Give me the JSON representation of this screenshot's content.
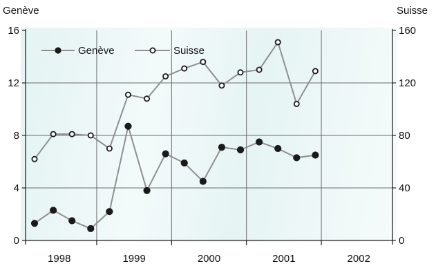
{
  "chart_data": {
    "type": "line",
    "left_axis_label": "Genève",
    "right_axis_label": "Suisse",
    "left_ylim": [
      0,
      16
    ],
    "left_yticks": [
      0,
      4,
      8,
      12,
      16
    ],
    "right_ylim": [
      0,
      160
    ],
    "right_yticks": [
      0,
      40,
      80,
      120,
      160
    ],
    "x_range": [
      1997.55,
      2002.45
    ],
    "x_year_boundaries": [
      1998.5,
      1999.5,
      2000.5,
      2001.5
    ],
    "x_labels": [
      {
        "label": "1998",
        "x": 1998
      },
      {
        "label": "1999",
        "x": 1999
      },
      {
        "label": "2000",
        "x": 2000
      },
      {
        "label": "2001",
        "x": 2001
      },
      {
        "label": "2002",
        "x": 2002
      }
    ],
    "grid": true,
    "legend_position": "top-left",
    "colors": {
      "series_line": "#8f8f8f",
      "marker": "#1a1a1a",
      "grid": "#6b6b6b",
      "background": "#e8f5f5"
    },
    "series": [
      {
        "name": "Genève",
        "axis": "left",
        "marker": "filled-circle",
        "x": [
          1997.67,
          1997.92,
          1998.17,
          1998.42,
          1998.67,
          1998.92,
          1999.17,
          1999.42,
          1999.67,
          1999.92,
          2000.17,
          2000.42,
          2000.67,
          2000.92,
          2001.17,
          2001.42
        ],
        "values": [
          1.3,
          2.3,
          1.5,
          0.9,
          2.2,
          8.7,
          3.8,
          6.6,
          5.9,
          4.5,
          7.1,
          6.9,
          7.5,
          7.0,
          6.3,
          6.5
        ]
      },
      {
        "name": "Suisse",
        "axis": "right",
        "marker": "open-circle",
        "x": [
          1997.67,
          1997.92,
          1998.17,
          1998.42,
          1998.67,
          1998.92,
          1999.17,
          1999.42,
          1999.67,
          1999.92,
          2000.17,
          2000.42,
          2000.67,
          2000.92,
          2001.17,
          2001.42
        ],
        "values": [
          62,
          81,
          81,
          80,
          70,
          111,
          108,
          125,
          131,
          136,
          118,
          128,
          130,
          151,
          104,
          129
        ]
      }
    ]
  }
}
